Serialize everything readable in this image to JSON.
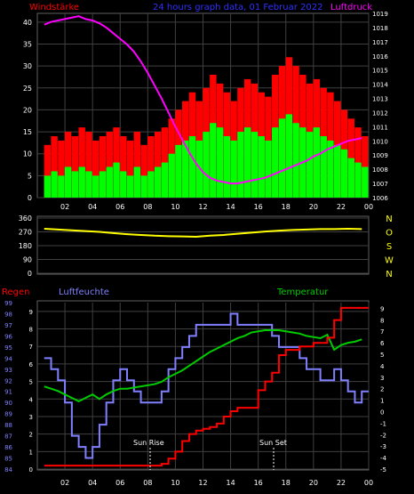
{
  "header": {
    "left_label": "Windstärke",
    "title": "24 hours graph data, 01 Februar 2022",
    "right_label": "Luftdruck"
  },
  "lower_header": {
    "left_label": "Regen",
    "mid_label": "Luftfeuchte",
    "right_label": "Temperatur"
  },
  "annotations": {
    "sunrise": "Sun Rise",
    "sunset": "Sun Set"
  },
  "colors": {
    "wind_gust": "#ff0000",
    "wind_avg": "#00ff00",
    "pressure": "#ff00ff",
    "wind_dir": "#ffff00",
    "humidity": "#8080ff",
    "temperature": "#00cc00",
    "rain": "#ff0000",
    "title_blue": "#3030ff",
    "grid": "#404040",
    "axis_text": "#ffffff"
  },
  "chart_data": [
    {
      "id": "wind-pressure",
      "type": "bar",
      "x_hours": [
        1,
        1.5,
        2,
        2.5,
        3,
        3.5,
        4,
        4.5,
        5,
        5.5,
        6,
        6.5,
        7,
        7.5,
        8,
        8.5,
        9,
        9.5,
        10,
        10.5,
        11,
        11.5,
        12,
        12.5,
        13,
        13.5,
        14,
        14.5,
        15,
        15.5,
        16,
        16.5,
        17,
        17.5,
        18,
        18.5,
        19,
        19.5,
        20,
        20.5,
        21,
        21.5,
        22,
        22.5,
        23,
        23.5,
        24
      ],
      "x_ticks": [
        "02",
        "04",
        "06",
        "08",
        "10",
        "12",
        "14",
        "16",
        "18",
        "20",
        "22",
        "00"
      ],
      "y_left": {
        "label": "Windstärke",
        "ticks": [
          0,
          5,
          10,
          15,
          20,
          25,
          30,
          35,
          40
        ],
        "range": [
          0,
          42
        ]
      },
      "y_right": {
        "label": "Luftdruck",
        "ticks": [
          1006,
          1007,
          1008,
          1009,
          1010,
          1011,
          1012,
          1013,
          1014,
          1015,
          1016,
          1017,
          1018,
          1019
        ],
        "range": [
          1006,
          1019
        ]
      },
      "series": [
        {
          "key": "gust",
          "values": [
            12,
            14,
            13,
            15,
            14,
            16,
            15,
            13,
            14,
            15,
            16,
            14,
            13,
            15,
            12,
            14,
            15,
            16,
            18,
            20,
            22,
            24,
            22,
            25,
            28,
            26,
            24,
            22,
            25,
            27,
            26,
            24,
            23,
            28,
            30,
            32,
            30,
            28,
            26,
            27,
            25,
            24,
            22,
            20,
            18,
            16,
            14
          ]
        },
        {
          "key": "avg",
          "values": [
            5,
            6,
            5,
            7,
            6,
            7,
            6,
            5,
            6,
            7,
            8,
            6,
            5,
            7,
            5,
            6,
            7,
            8,
            10,
            12,
            13,
            14,
            13,
            15,
            17,
            16,
            14,
            13,
            15,
            16,
            15,
            14,
            13,
            16,
            18,
            19,
            17,
            16,
            15,
            16,
            14,
            13,
            12,
            11,
            9,
            8,
            7
          ]
        },
        {
          "key": "pressure",
          "values": [
            1018.2,
            1018.4,
            1018.5,
            1018.6,
            1018.7,
            1018.8,
            1018.6,
            1018.5,
            1018.3,
            1018.0,
            1017.6,
            1017.2,
            1016.8,
            1016.3,
            1015.6,
            1014.8,
            1013.9,
            1013.0,
            1012.0,
            1011.0,
            1010.1,
            1009.2,
            1008.4,
            1007.8,
            1007.4,
            1007.2,
            1007.1,
            1007.0,
            1007.0,
            1007.1,
            1007.2,
            1007.3,
            1007.4,
            1007.6,
            1007.8,
            1008.0,
            1008.2,
            1008.4,
            1008.6,
            1008.9,
            1009.1,
            1009.4,
            1009.6,
            1009.8,
            1010.0,
            1010.1,
            1010.2
          ]
        }
      ]
    },
    {
      "id": "wind-direction",
      "type": "line",
      "x_hours": [
        1,
        2,
        3,
        4,
        5,
        6,
        7,
        8,
        9,
        10,
        11,
        12,
        13,
        14,
        15,
        16,
        17,
        18,
        19,
        20,
        21,
        22,
        23,
        24
      ],
      "y_left": {
        "ticks": [
          0,
          90,
          180,
          270,
          360
        ],
        "range": [
          0,
          360
        ]
      },
      "y_right": {
        "ticks": [
          "N",
          "W",
          "S",
          "O",
          "N"
        ]
      },
      "series": [
        {
          "key": "direction",
          "values": [
            290,
            285,
            280,
            275,
            270,
            262,
            255,
            250,
            245,
            242,
            240,
            238,
            245,
            250,
            258,
            265,
            272,
            278,
            282,
            285,
            288,
            288,
            290,
            288
          ]
        }
      ]
    },
    {
      "id": "humidity-temp-rain",
      "type": "line",
      "x_hours": [
        1,
        1.5,
        2,
        2.5,
        3,
        3.5,
        4,
        4.5,
        5,
        5.5,
        6,
        6.5,
        7,
        7.5,
        8,
        8.5,
        9,
        9.5,
        10,
        10.5,
        11,
        11.5,
        12,
        12.5,
        13,
        13.5,
        14,
        14.5,
        15,
        15.5,
        16,
        16.5,
        17,
        17.5,
        18,
        18.5,
        19,
        19.5,
        20,
        20.5,
        21,
        21.5,
        22,
        22.5,
        23,
        23.5,
        24
      ],
      "x_ticks": [
        "02",
        "04",
        "06",
        "08",
        "10",
        "12",
        "14",
        "16",
        "18",
        "20",
        "22",
        "00"
      ],
      "y_humidity": {
        "label": "Luftfeuchte",
        "ticks": [
          84,
          85,
          86,
          87,
          88,
          89,
          90,
          91,
          92,
          93,
          94,
          95,
          96,
          97,
          98,
          99
        ],
        "range": [
          84,
          99
        ]
      },
      "y_rain": {
        "label": "Regen",
        "ticks": [
          0,
          1,
          2,
          3,
          4,
          5,
          6,
          7,
          8,
          9
        ],
        "range": [
          0,
          9.5
        ]
      },
      "y_temp": {
        "label": "Temperatur",
        "ticks": [
          -5,
          -4,
          -3,
          -2,
          -1,
          0,
          1,
          2,
          3,
          4,
          5,
          6,
          7,
          8,
          9
        ],
        "range": [
          -5,
          9.5
        ]
      },
      "series": [
        {
          "key": "humidity",
          "values": [
            94,
            93,
            92,
            90,
            87,
            86,
            85,
            86,
            88,
            90,
            92,
            93,
            92,
            91,
            90,
            90,
            90,
            91,
            93,
            94,
            95,
            96,
            97,
            97,
            97,
            97,
            97,
            98,
            97,
            97,
            97,
            97,
            97,
            96,
            95,
            95,
            95,
            94,
            93,
            93,
            92,
            92,
            93,
            92,
            91,
            90,
            91
          ]
        },
        {
          "key": "temperature",
          "values": [
            2.2,
            2.0,
            1.8,
            1.5,
            1.2,
            0.9,
            1.2,
            1.5,
            1.1,
            1.5,
            1.8,
            2.0,
            2.0,
            2.1,
            2.2,
            2.3,
            2.4,
            2.6,
            3.0,
            3.3,
            3.6,
            4.0,
            4.4,
            4.8,
            5.2,
            5.5,
            5.8,
            6.1,
            6.4,
            6.6,
            6.9,
            7.0,
            7.1,
            7.1,
            7.1,
            7.0,
            6.9,
            6.8,
            6.6,
            6.5,
            6.4,
            6.7,
            5.4,
            5.8,
            6.0,
            6.1,
            6.3
          ]
        },
        {
          "key": "rain",
          "values": [
            0.2,
            0.2,
            0.2,
            0.2,
            0.2,
            0.2,
            0.2,
            0.2,
            0.2,
            0.2,
            0.2,
            0.2,
            0.2,
            0.2,
            0.2,
            0.2,
            0.2,
            0.3,
            0.6,
            1.0,
            1.6,
            2.0,
            2.2,
            2.3,
            2.4,
            2.6,
            3.0,
            3.3,
            3.5,
            3.5,
            3.5,
            4.5,
            5.0,
            5.5,
            6.5,
            6.8,
            6.8,
            7.0,
            7.0,
            7.2,
            7.2,
            7.5,
            8.5,
            9.2,
            9.2,
            9.2,
            9.2
          ]
        }
      ]
    }
  ]
}
